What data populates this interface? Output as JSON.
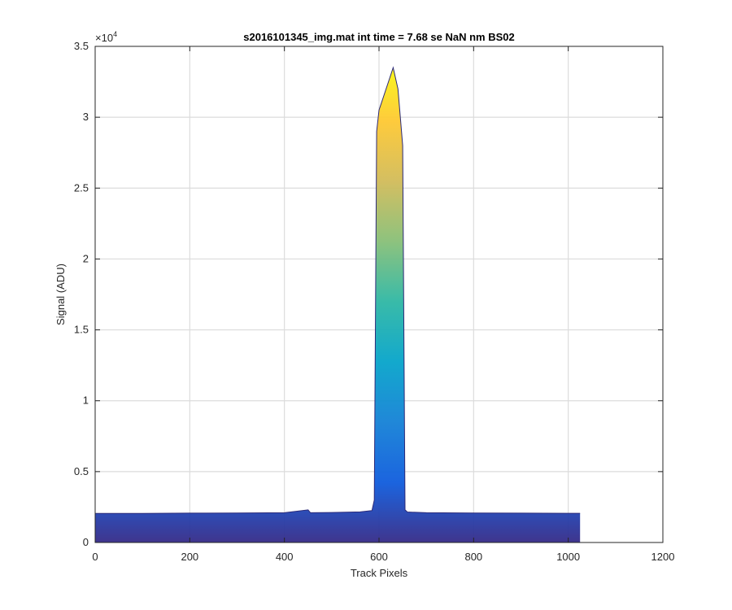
{
  "chart_data": {
    "type": "area",
    "title": "s2016101345_img.mat int time = 7.68 se  NaN nm BS02",
    "xlabel": "Track Pixels",
    "ylabel": "Signal (ADU)",
    "xlim": [
      0,
      1200
    ],
    "ylim": [
      0,
      35000
    ],
    "x_ticks": [
      0,
      200,
      400,
      600,
      800,
      1000,
      1200
    ],
    "x_tick_labels": [
      "0",
      "200",
      "400",
      "600",
      "800",
      "1000",
      "1200"
    ],
    "y_ticks": [
      0,
      5000,
      10000,
      15000,
      20000,
      25000,
      30000,
      35000
    ],
    "y_tick_labels": [
      "0",
      "0.5",
      "1",
      "1.5",
      "2",
      "2.5",
      "3",
      "3.5"
    ],
    "y_exponent_base": "×10",
    "y_exponent_power": "4",
    "grid": true,
    "colormap": [
      "#352a87",
      "#0f5cdd",
      "#1481d6",
      "#06a4ca",
      "#2eb7a4",
      "#87bf77",
      "#d1bb59",
      "#fec832",
      "#f9fb0e"
    ],
    "baseline_color": "#2c2a78",
    "series": [
      {
        "x": [
          0,
          100,
          200,
          300,
          400,
          450,
          455,
          500,
          560,
          585,
          590,
          595,
          600,
          610,
          620,
          630,
          640,
          645,
          650,
          655,
          660,
          700,
          800,
          900,
          1000,
          1025
        ],
        "y": [
          2050,
          2050,
          2070,
          2080,
          2100,
          2300,
          2100,
          2120,
          2160,
          2250,
          3000,
          29000,
          30500,
          31500,
          32500,
          33500,
          32000,
          30000,
          28000,
          2300,
          2150,
          2100,
          2080,
          2070,
          2060,
          2060
        ]
      }
    ]
  }
}
